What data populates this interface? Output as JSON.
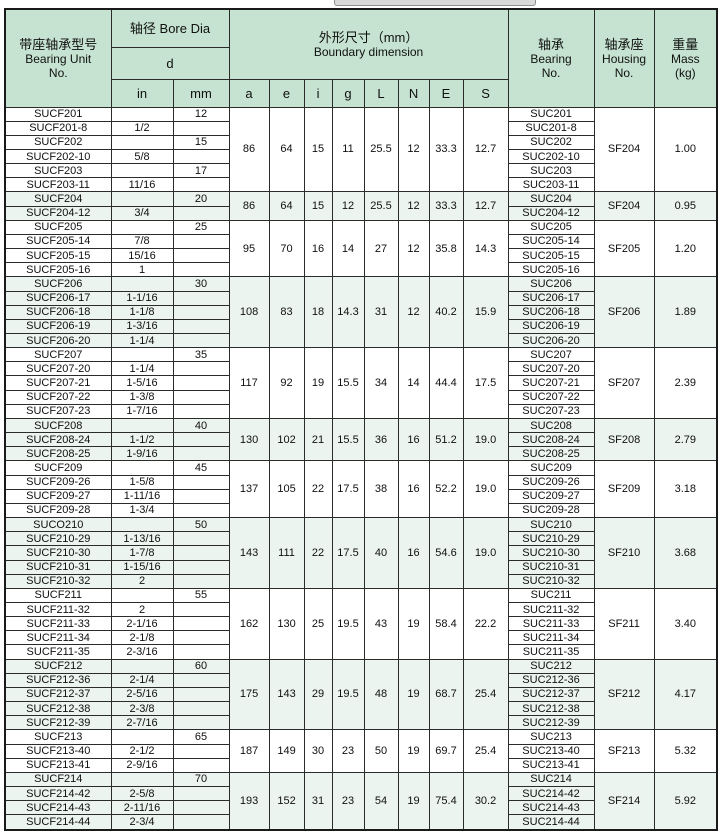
{
  "colors": {
    "header_bg": "#c6e3d1",
    "tint_bg": "#ebf4ee",
    "border": "#2b2b2b",
    "border_dark": "#1a1a1a",
    "fragment_bg": "#d9d9d9"
  },
  "table": {
    "header": {
      "unit_zh": "带座轴承型号",
      "unit_en1": "Bearing Unit",
      "unit_en2": "No.",
      "bore_label": "轴径 Bore Dia",
      "bore_d": "d",
      "dim_zh": "外形尺寸（mm）",
      "dim_en": "Boundary dimension",
      "bearing_zh": "轴承",
      "bearing_en1": "Bearing",
      "bearing_en2": "No.",
      "housing_zh": "轴承座",
      "housing_en1": "Housing",
      "housing_en2": "No.",
      "mass_zh": "重量",
      "mass_en1": "Mass",
      "mass_en2": "(kg)",
      "sub_cols": [
        "in",
        "mm",
        "a",
        "e",
        "i",
        "g",
        "L",
        "N",
        "E",
        "S"
      ]
    },
    "groups": [
      {
        "tinted": false,
        "housing": "SF204",
        "mass": "1.00",
        "dims": [
          "86",
          "64",
          "15",
          "11",
          "25.5",
          "12",
          "33.3",
          "12.7"
        ],
        "rows": [
          {
            "unit": "SUCF201",
            "in": "",
            "mm": "12",
            "bearing": "SUC201"
          },
          {
            "unit": "SUCF201-8",
            "in": "1/2",
            "mm": "",
            "bearing": "SUC201-8"
          },
          {
            "unit": "SUCF202",
            "in": "",
            "mm": "15",
            "bearing": "SUC202"
          },
          {
            "unit": "SUCF202-10",
            "in": "5/8",
            "mm": "",
            "bearing": "SUC202-10"
          },
          {
            "unit": "SUCF203",
            "in": "",
            "mm": "17",
            "bearing": "SUC203"
          },
          {
            "unit": "SUCF203-11",
            "in": "11/16",
            "mm": "",
            "bearing": "SUC203-11"
          }
        ]
      },
      {
        "tinted": true,
        "housing": "SF204",
        "mass": "0.95",
        "dims": [
          "86",
          "64",
          "15",
          "12",
          "25.5",
          "12",
          "33.3",
          "12.7"
        ],
        "rows": [
          {
            "unit": "SUCF204",
            "in": "",
            "mm": "20",
            "bearing": "SUC204"
          },
          {
            "unit": "SUCF204-12",
            "in": "3/4",
            "mm": "",
            "bearing": "SUC204-12"
          }
        ]
      },
      {
        "tinted": false,
        "housing": "SF205",
        "mass": "1.20",
        "dims": [
          "95",
          "70",
          "16",
          "14",
          "27",
          "12",
          "35.8",
          "14.3"
        ],
        "rows": [
          {
            "unit": "SUCF205",
            "in": "",
            "mm": "25",
            "bearing": "SUC205"
          },
          {
            "unit": "SUCF205-14",
            "in": "7/8",
            "mm": "",
            "bearing": "SUC205-14"
          },
          {
            "unit": "SUCF205-15",
            "in": "15/16",
            "mm": "",
            "bearing": "SUC205-15"
          },
          {
            "unit": "SUCF205-16",
            "in": "1",
            "mm": "",
            "bearing": "SUC205-16"
          }
        ]
      },
      {
        "tinted": true,
        "housing": "SF206",
        "mass": "1.89",
        "dims": [
          "108",
          "83",
          "18",
          "14.3",
          "31",
          "12",
          "40.2",
          "15.9"
        ],
        "rows": [
          {
            "unit": "SUCF206",
            "in": "",
            "mm": "30",
            "bearing": "SUC206"
          },
          {
            "unit": "SUCF206-17",
            "in": "1-1/16",
            "mm": "",
            "bearing": "SUC206-17"
          },
          {
            "unit": "SUCF206-18",
            "in": "1-1/8",
            "mm": "",
            "bearing": "SUC206-18"
          },
          {
            "unit": "SUCF206-19",
            "in": "1-3/16",
            "mm": "",
            "bearing": "SUC206-19"
          },
          {
            "unit": "SUCF206-20",
            "in": "1-1/4",
            "mm": "",
            "bearing": "SUC206-20"
          }
        ]
      },
      {
        "tinted": false,
        "housing": "SF207",
        "mass": "2.39",
        "dims": [
          "117",
          "92",
          "19",
          "15.5",
          "34",
          "14",
          "44.4",
          "17.5"
        ],
        "rows": [
          {
            "unit": "SUCF207",
            "in": "",
            "mm": "35",
            "bearing": "SUC207"
          },
          {
            "unit": "SUCF207-20",
            "in": "1-1/4",
            "mm": "",
            "bearing": "SUC207-20"
          },
          {
            "unit": "SUCF207-21",
            "in": "1-5/16",
            "mm": "",
            "bearing": "SUC207-21"
          },
          {
            "unit": "SUCF207-22",
            "in": "1-3/8",
            "mm": "",
            "bearing": "SUC207-22"
          },
          {
            "unit": "SUCF207-23",
            "in": "1-7/16",
            "mm": "",
            "bearing": "SUC207-23"
          }
        ]
      },
      {
        "tinted": true,
        "housing": "SF208",
        "mass": "2.79",
        "dims": [
          "130",
          "102",
          "21",
          "15.5",
          "36",
          "16",
          "51.2",
          "19.0"
        ],
        "rows": [
          {
            "unit": "SUCF208",
            "in": "",
            "mm": "40",
            "bearing": "SUC208"
          },
          {
            "unit": "SUCF208-24",
            "in": "1-1/2",
            "mm": "",
            "bearing": "SUC208-24"
          },
          {
            "unit": "SUCF208-25",
            "in": "1-9/16",
            "mm": "",
            "bearing": "SUC208-25"
          }
        ]
      },
      {
        "tinted": false,
        "housing": "SF209",
        "mass": "3.18",
        "dims": [
          "137",
          "105",
          "22",
          "17.5",
          "38",
          "16",
          "52.2",
          "19.0"
        ],
        "rows": [
          {
            "unit": "SUCF209",
            "in": "",
            "mm": "45",
            "bearing": "SUC209"
          },
          {
            "unit": "SUCF209-26",
            "in": "1-5/8",
            "mm": "",
            "bearing": "SUC209-26"
          },
          {
            "unit": "SUCF209-27",
            "in": "1-11/16",
            "mm": "",
            "bearing": "SUC209-27"
          },
          {
            "unit": "SUCF209-28",
            "in": "1-3/4",
            "mm": "",
            "bearing": "SUC209-28"
          }
        ]
      },
      {
        "tinted": true,
        "housing": "SF210",
        "mass": "3.68",
        "dims": [
          "143",
          "111",
          "22",
          "17.5",
          "40",
          "16",
          "54.6",
          "19.0"
        ],
        "rows": [
          {
            "unit": "SUCO210",
            "in": "",
            "mm": "50",
            "bearing": "SUC210"
          },
          {
            "unit": "SUCF210-29",
            "in": "1-13/16",
            "mm": "",
            "bearing": "SUC210-29"
          },
          {
            "unit": "SUCF210-30",
            "in": "1-7/8",
            "mm": "",
            "bearing": "SUC210-30"
          },
          {
            "unit": "SUCF210-31",
            "in": "1-15/16",
            "mm": "",
            "bearing": "SUC210-31"
          },
          {
            "unit": "SUCF210-32",
            "in": "2",
            "mm": "",
            "bearing": "SUC210-32"
          }
        ]
      },
      {
        "tinted": false,
        "housing": "SF211",
        "mass": "3.40",
        "dims": [
          "162",
          "130",
          "25",
          "19.5",
          "43",
          "19",
          "58.4",
          "22.2"
        ],
        "rows": [
          {
            "unit": "SUCF211",
            "in": "",
            "mm": "55",
            "bearing": "SUC211"
          },
          {
            "unit": "SUCF211-32",
            "in": "2",
            "mm": "",
            "bearing": "SUC211-32"
          },
          {
            "unit": "SUCF211-33",
            "in": "2-1/16",
            "mm": "",
            "bearing": "SUC211-33"
          },
          {
            "unit": "SUCF211-34",
            "in": "2-1/8",
            "mm": "",
            "bearing": "SUC211-34"
          },
          {
            "unit": "SUCF211-35",
            "in": "2-3/16",
            "mm": "",
            "bearing": "SUC211-35"
          }
        ]
      },
      {
        "tinted": true,
        "housing": "SF212",
        "mass": "4.17",
        "dims": [
          "175",
          "143",
          "29",
          "19.5",
          "48",
          "19",
          "68.7",
          "25.4"
        ],
        "rows": [
          {
            "unit": "SUCF212",
            "in": "",
            "mm": "60",
            "bearing": "SUC212"
          },
          {
            "unit": "SUCF212-36",
            "in": "2-1/4",
            "mm": "",
            "bearing": "SUC212-36"
          },
          {
            "unit": "SUCF212-37",
            "in": "2-5/16",
            "mm": "",
            "bearing": "SUC212-37"
          },
          {
            "unit": "SUCF212-38",
            "in": "2-3/8",
            "mm": "",
            "bearing": "SUC212-38"
          },
          {
            "unit": "SUCF212-39",
            "in": "2-7/16",
            "mm": "",
            "bearing": "SUC212-39"
          }
        ]
      },
      {
        "tinted": false,
        "housing": "SF213",
        "mass": "5.32",
        "dims": [
          "187",
          "149",
          "30",
          "23",
          "50",
          "19",
          "69.7",
          "25.4"
        ],
        "rows": [
          {
            "unit": "SUCF213",
            "in": "",
            "mm": "65",
            "bearing": "SUC213"
          },
          {
            "unit": "SUCF213-40",
            "in": "2-1/2",
            "mm": "",
            "bearing": "SUC213-40"
          },
          {
            "unit": "SUCF213-41",
            "in": "2-9/16",
            "mm": "",
            "bearing": "SUC213-41"
          }
        ]
      },
      {
        "tinted": true,
        "housing": "SF214",
        "mass": "5.92",
        "dims": [
          "193",
          "152",
          "31",
          "23",
          "54",
          "19",
          "75.4",
          "30.2"
        ],
        "rows": [
          {
            "unit": "SUCF214",
            "in": "",
            "mm": "70",
            "bearing": "SUC214"
          },
          {
            "unit": "SUCF214-42",
            "in": "2-5/8",
            "mm": "",
            "bearing": "SUC214-42"
          },
          {
            "unit": "SUCF214-43",
            "in": "2-11/16",
            "mm": "",
            "bearing": "SUC214-43"
          },
          {
            "unit": "SUCF214-44",
            "in": "2-3/4",
            "mm": "",
            "bearing": "SUC214-44"
          }
        ]
      }
    ]
  }
}
